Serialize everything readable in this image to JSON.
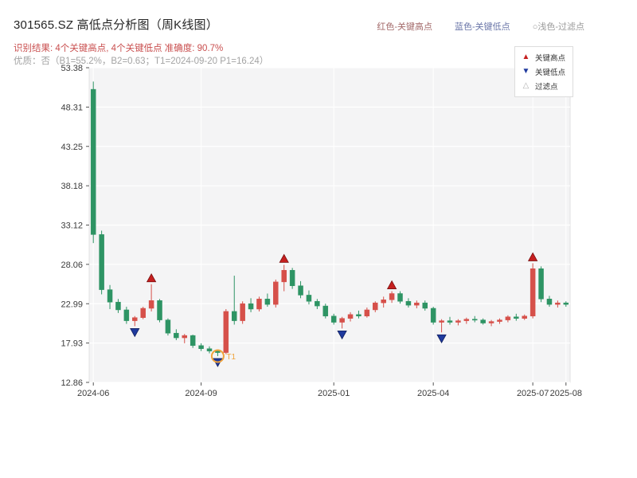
{
  "header": {
    "title": "301565.SZ 高低点分析图（周K线图）",
    "result_text": "识别结果: 4个关键高点, 4个关键低点  准确度: 90.7%",
    "result_color": "#c94f4f",
    "quality_text": "优质：否（B1=55.2%，B2=0.63；T1=2024-09-20 P1=16.24）",
    "legend": [
      {
        "label": "红色-关键高点",
        "color": "#a36a6a"
      },
      {
        "label": "蓝色-关键低点",
        "color": "#6a76a8"
      },
      {
        "label": "○浅色-过滤点",
        "color": "#9a9a9a"
      }
    ]
  },
  "chart_data": {
    "type": "candlestick",
    "title": "301565.SZ 高低点分析图（周K线图）",
    "x_ticks": [
      "2024-06",
      "2024-09",
      "2025-01",
      "2025-04",
      "2025-07",
      "2025-08"
    ],
    "y_ticks": [
      53.38,
      48.31,
      43.25,
      38.18,
      33.12,
      28.06,
      22.99,
      17.93,
      12.86
    ],
    "ylim": [
      12.86,
      53.38
    ],
    "grid": true,
    "plot_bg": "#f4f4f5",
    "up_color": "#d6504a",
    "down_color": "#2e9464",
    "high_marker_color": "#c51f1f",
    "low_marker_color": "#1f3a9e",
    "candle_fields": [
      "date",
      "open",
      "high",
      "low",
      "close"
    ],
    "candles": [
      [
        "2024-06-07",
        50.6,
        51.6,
        30.8,
        31.9
      ],
      [
        "2024-06-14",
        31.9,
        32.4,
        24.2,
        24.8
      ],
      [
        "2024-06-21",
        24.8,
        25.4,
        22.3,
        23.2
      ],
      [
        "2024-06-28",
        23.2,
        23.6,
        21.8,
        22.2
      ],
      [
        "2024-07-05",
        22.2,
        22.6,
        20.4,
        20.8
      ],
      [
        "2024-07-12",
        20.8,
        21.4,
        20.1,
        21.2
      ],
      [
        "2024-07-19",
        21.2,
        22.6,
        21.0,
        22.4
      ],
      [
        "2024-07-26",
        22.4,
        25.5,
        22.0,
        23.4
      ],
      [
        "2024-08-02",
        23.4,
        23.6,
        20.6,
        20.9
      ],
      [
        "2024-08-09",
        20.9,
        21.1,
        18.9,
        19.2
      ],
      [
        "2024-08-16",
        19.2,
        19.7,
        18.3,
        18.6
      ],
      [
        "2024-08-23",
        18.6,
        19.1,
        17.9,
        18.9
      ],
      [
        "2024-08-30",
        18.9,
        19.0,
        17.3,
        17.6
      ],
      [
        "2024-09-06",
        17.6,
        17.9,
        16.9,
        17.2
      ],
      [
        "2024-09-13",
        17.2,
        17.5,
        16.6,
        16.9
      ],
      [
        "2024-09-20",
        16.9,
        17.1,
        16.24,
        16.7
      ],
      [
        "2024-09-27",
        16.7,
        22.3,
        16.5,
        22.0
      ],
      [
        "2024-10-11",
        22.0,
        26.6,
        20.3,
        20.8
      ],
      [
        "2024-10-18",
        20.8,
        23.3,
        20.4,
        23.0
      ],
      [
        "2024-10-25",
        23.0,
        23.7,
        21.9,
        22.3
      ],
      [
        "2024-11-01",
        22.3,
        23.9,
        22.0,
        23.6
      ],
      [
        "2024-11-08",
        23.6,
        24.3,
        22.6,
        22.9
      ],
      [
        "2024-11-15",
        22.9,
        26.1,
        22.5,
        25.8
      ],
      [
        "2024-11-22",
        25.8,
        28.0,
        24.6,
        27.3
      ],
      [
        "2024-11-29",
        27.3,
        27.6,
        24.9,
        25.3
      ],
      [
        "2024-12-06",
        25.3,
        25.9,
        23.7,
        24.1
      ],
      [
        "2024-12-13",
        24.1,
        24.7,
        22.9,
        23.3
      ],
      [
        "2024-12-20",
        23.3,
        23.6,
        22.3,
        22.7
      ],
      [
        "2024-12-27",
        22.7,
        23.0,
        21.1,
        21.4
      ],
      [
        "2025-01-03",
        21.4,
        21.7,
        20.3,
        20.6
      ],
      [
        "2025-01-10",
        20.6,
        21.3,
        19.8,
        21.1
      ],
      [
        "2025-01-17",
        21.1,
        21.9,
        20.7,
        21.6
      ],
      [
        "2025-01-24",
        21.6,
        22.1,
        21.1,
        21.4
      ],
      [
        "2025-02-07",
        21.4,
        22.5,
        21.2,
        22.2
      ],
      [
        "2025-02-14",
        22.2,
        23.3,
        21.9,
        23.1
      ],
      [
        "2025-02-21",
        23.1,
        23.9,
        22.5,
        23.5
      ],
      [
        "2025-02-28",
        23.5,
        24.6,
        23.1,
        24.3
      ],
      [
        "2025-03-07",
        24.3,
        24.6,
        23.0,
        23.3
      ],
      [
        "2025-03-14",
        23.3,
        23.7,
        22.5,
        22.8
      ],
      [
        "2025-03-21",
        22.8,
        23.4,
        22.4,
        23.1
      ],
      [
        "2025-03-28",
        23.1,
        23.4,
        22.1,
        22.4
      ],
      [
        "2025-04-03",
        22.4,
        22.6,
        20.3,
        20.6
      ],
      [
        "2025-04-11",
        20.6,
        21.0,
        19.3,
        20.8
      ],
      [
        "2025-04-18",
        20.8,
        21.3,
        20.3,
        20.6
      ],
      [
        "2025-04-25",
        20.6,
        21.0,
        20.2,
        20.8
      ],
      [
        "2025-05-09",
        20.8,
        21.2,
        20.4,
        21.0
      ],
      [
        "2025-05-16",
        21.0,
        21.4,
        20.6,
        20.9
      ],
      [
        "2025-05-23",
        20.9,
        21.1,
        20.3,
        20.5
      ],
      [
        "2025-05-30",
        20.5,
        20.9,
        20.1,
        20.7
      ],
      [
        "2025-06-06",
        20.7,
        21.1,
        20.4,
        20.9
      ],
      [
        "2025-06-13",
        20.9,
        21.5,
        20.6,
        21.3
      ],
      [
        "2025-06-20",
        21.3,
        21.7,
        20.8,
        21.1
      ],
      [
        "2025-06-27",
        21.1,
        21.6,
        20.9,
        21.4
      ],
      [
        "2025-07-04",
        21.4,
        28.2,
        21.1,
        27.5
      ],
      [
        "2025-07-11",
        27.5,
        27.8,
        23.2,
        23.6
      ],
      [
        "2025-07-18",
        23.6,
        24.0,
        22.6,
        22.9
      ],
      [
        "2025-07-25",
        22.9,
        23.4,
        22.5,
        23.1
      ],
      [
        "2025-08-01",
        23.1,
        23.3,
        22.6,
        22.9
      ]
    ],
    "key_highs": [
      {
        "date": "2024-07-26",
        "price": 25.5
      },
      {
        "date": "2024-11-22",
        "price": 28.0
      },
      {
        "date": "2025-02-28",
        "price": 24.6
      },
      {
        "date": "2025-07-04",
        "price": 28.2
      }
    ],
    "key_lows": [
      {
        "date": "2024-07-12",
        "price": 20.1
      },
      {
        "date": "2024-09-20",
        "price": 16.24
      },
      {
        "date": "2025-01-10",
        "price": 19.8
      },
      {
        "date": "2025-04-11",
        "price": 19.3
      }
    ],
    "filter_points": [],
    "t1": {
      "date": "2024-09-20",
      "price": 16.24,
      "label": "T1",
      "color": "#f0a33c"
    },
    "chart_legend": [
      {
        "glyph": "▲",
        "label": "关键高点",
        "color": "#c51f1f"
      },
      {
        "glyph": "▼",
        "label": "关键低点",
        "color": "#1f3a9e"
      },
      {
        "glyph": "△",
        "label": "过滤点",
        "color": "#b0b0b0"
      }
    ]
  }
}
